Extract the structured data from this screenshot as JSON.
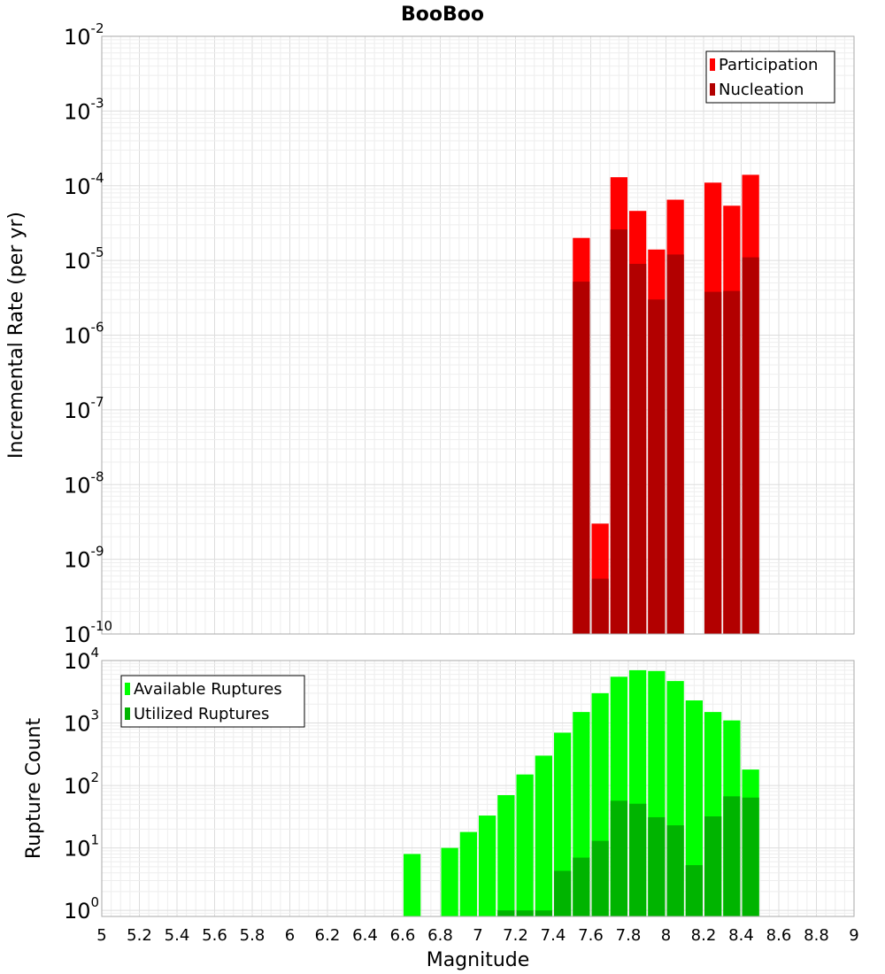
{
  "chart_data": [
    {
      "type": "bar",
      "title": "BooBoo",
      "xlabel": "",
      "ylabel": "Incremental Rate (per yr)",
      "y_scale": "log",
      "ylim": [
        1e-10,
        0.01
      ],
      "xlim": [
        5,
        9
      ],
      "y_ticks": [
        {
          "base": "10",
          "exp": "-10"
        },
        {
          "base": "10",
          "exp": "-9"
        },
        {
          "base": "10",
          "exp": "-8"
        },
        {
          "base": "10",
          "exp": "-7"
        },
        {
          "base": "10",
          "exp": "-6"
        },
        {
          "base": "10",
          "exp": "-5"
        },
        {
          "base": "10",
          "exp": "-4"
        },
        {
          "base": "10",
          "exp": "-3"
        },
        {
          "base": "10",
          "exp": "-2"
        }
      ],
      "grid": true,
      "legend_position": "top-right",
      "bar_width": 0.1,
      "series": [
        {
          "name": "Participation",
          "color": "#ff0000",
          "x": [
            7.55,
            7.65,
            7.75,
            7.85,
            7.95,
            8.05,
            8.25,
            8.35,
            8.45
          ],
          "values": [
            2e-05,
            3e-09,
            0.00013,
            4.6e-05,
            1.4e-05,
            6.5e-05,
            0.00011,
            5.4e-05,
            0.00014
          ]
        },
        {
          "name": "Nucleation",
          "color": "#b20000",
          "x": [
            7.55,
            7.65,
            7.75,
            7.85,
            7.95,
            8.05,
            8.25,
            8.35,
            8.45
          ],
          "values": [
            5.2e-06,
            5.5e-10,
            2.6e-05,
            9e-06,
            3e-06,
            1.2e-05,
            3.8e-06,
            3.9e-06,
            1.1e-05
          ]
        }
      ]
    },
    {
      "type": "bar",
      "title": "",
      "xlabel": "Magnitude",
      "ylabel": "Rupture Count",
      "y_scale": "log",
      "ylim": [
        0.8,
        10000
      ],
      "xlim": [
        5,
        9
      ],
      "x_ticks": [
        "5",
        "5.2",
        "5.4",
        "5.6",
        "5.8",
        "6",
        "6.2",
        "6.4",
        "6.6",
        "6.8",
        "7",
        "7.2",
        "7.4",
        "7.6",
        "7.8",
        "8",
        "8.2",
        "8.4",
        "8.6",
        "8.8",
        "9"
      ],
      "y_ticks": [
        {
          "base": "10",
          "exp": "0"
        },
        {
          "base": "10",
          "exp": "1"
        },
        {
          "base": "10",
          "exp": "2"
        },
        {
          "base": "10",
          "exp": "3"
        },
        {
          "base": "10",
          "exp": "4"
        }
      ],
      "grid": true,
      "legend_position": "top-left",
      "bar_width": 0.1,
      "series": [
        {
          "name": "Available Ruptures",
          "color": "#00ff00",
          "x": [
            6.65,
            6.85,
            6.95,
            7.05,
            7.15,
            7.25,
            7.35,
            7.45,
            7.55,
            7.65,
            7.75,
            7.85,
            7.95,
            8.05,
            8.15,
            8.25,
            8.35,
            8.45
          ],
          "values": [
            8,
            10,
            18,
            33,
            70,
            150,
            300,
            700,
            1500,
            3000,
            5500,
            7000,
            6800,
            4700,
            2300,
            1500,
            1100,
            180
          ]
        },
        {
          "name": "Utilized Ruptures",
          "color": "#00b400",
          "x": [
            7.15,
            7.25,
            7.35,
            7.45,
            7.55,
            7.65,
            7.75,
            7.85,
            7.95,
            8.05,
            8.15,
            8.25,
            8.35,
            8.45
          ],
          "values": [
            1,
            1,
            1,
            4.3,
            7,
            13,
            57,
            51,
            31,
            23,
            5.3,
            32,
            67,
            64
          ]
        }
      ]
    }
  ]
}
